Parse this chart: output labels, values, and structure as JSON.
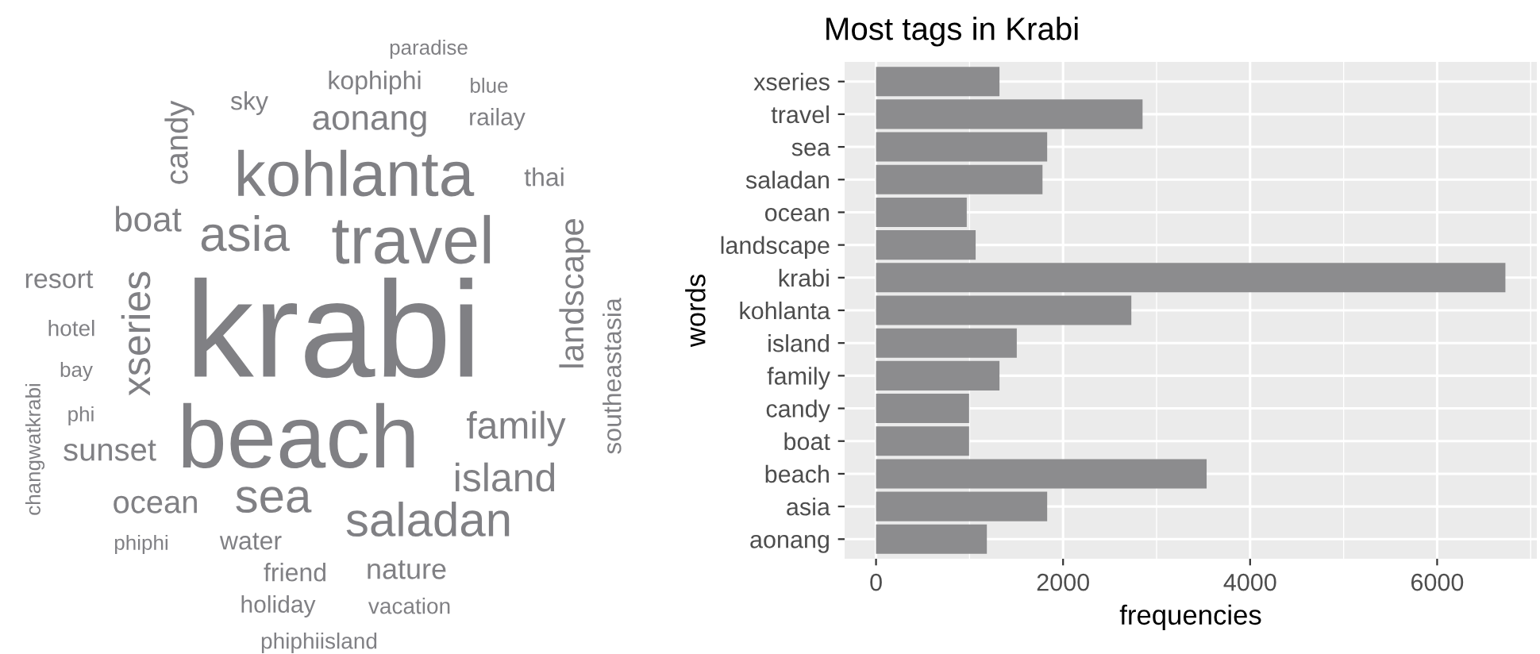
{
  "chart_data": [
    {
      "type": "other",
      "annotations": [
        "paradise",
        "kophiphi",
        "blue",
        "sky",
        "railay",
        "aonang",
        "candy",
        "kohlanta",
        "thai",
        "boat",
        "asia",
        "travel",
        "landscape",
        "resort",
        "xseries",
        "hotel",
        "krabi",
        "bay",
        "southeastasia",
        "changwatkrabi",
        "phi",
        "family",
        "beach",
        "sunset",
        "island",
        "ocean",
        "sea",
        "saladan",
        "phiphi",
        "water",
        "friend",
        "nature",
        "holiday",
        "vacation",
        "phiphiisland"
      ],
      "color": "#808084"
    },
    {
      "type": "bar",
      "orientation": "horizontal",
      "title": "Most tags in Krabi",
      "xlabel": "frequencies",
      "ylabel": "words",
      "categories": [
        "xseries",
        "travel",
        "sea",
        "saladan",
        "ocean",
        "landscape",
        "krabi",
        "kohlanta",
        "island",
        "family",
        "candy",
        "boat",
        "beach",
        "asia",
        "aonang"
      ],
      "values": [
        1320,
        2850,
        1830,
        1780,
        970,
        1065,
        6730,
        2730,
        1505,
        1320,
        995,
        995,
        3535,
        1830,
        1185
      ],
      "color": "#8c8c8e",
      "xlim": [
        -336,
        7066
      ],
      "xticks": [
        0,
        2000,
        4000,
        6000
      ],
      "grid": true
    }
  ]
}
